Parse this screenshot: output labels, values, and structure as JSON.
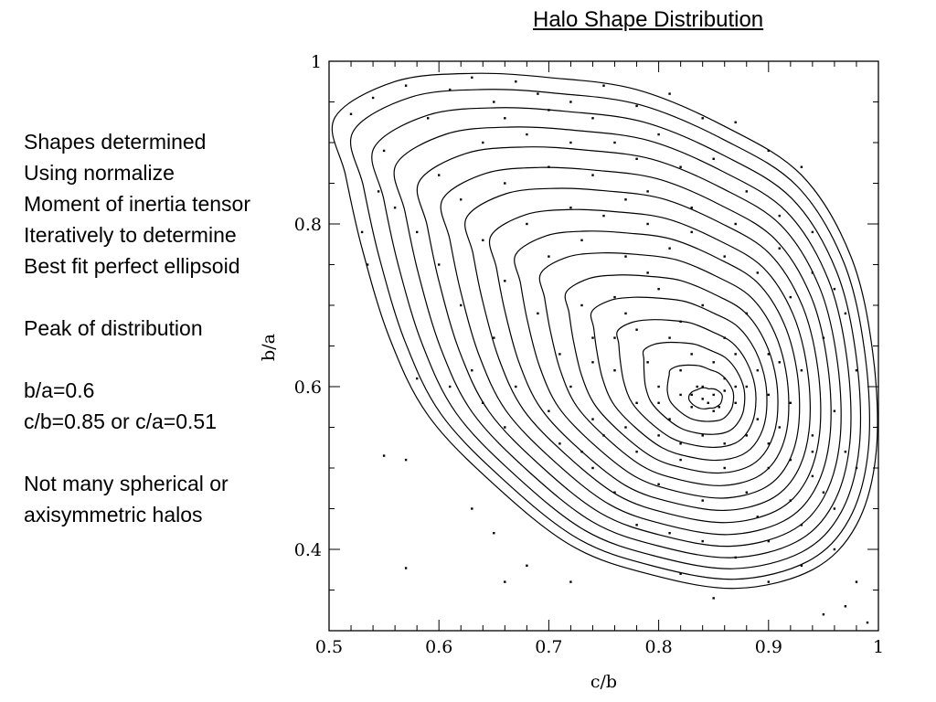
{
  "slide": {
    "title": "Halo Shape Distribution",
    "notes": [
      "Shapes determined",
      "Using normalize",
      "Moment of inertia tensor",
      "Iteratively to determine",
      "Best fit perfect ellipsoid",
      "",
      "Peak of distribution",
      "",
      "b/a=0.6",
      "c/b=0.85 or c/a=0.51",
      "",
      "Not many spherical or",
      "axisymmetric halos"
    ]
  },
  "chart_data": {
    "type": "scatter",
    "xlabel": "c/b",
    "ylabel": "b/a",
    "xlim": [
      0.5,
      1.0
    ],
    "ylim": [
      0.3,
      1.0
    ],
    "xticks": [
      0.5,
      0.6,
      0.7,
      0.8,
      0.9,
      1.0
    ],
    "xtick_labels": [
      "0.5",
      "0.6",
      "0.7",
      "0.8",
      "0.9",
      "1"
    ],
    "yticks": [
      0.4,
      0.6,
      0.8,
      1.0
    ],
    "ytick_labels": [
      "0.4",
      "0.6",
      "0.8",
      "1"
    ],
    "grid": false,
    "overlay": "density contours",
    "density_peak": {
      "x": 0.845,
      "y": 0.585
    },
    "contour_levels": 16,
    "outer_contour": [
      [
        0.505,
        0.93
      ],
      [
        0.56,
        0.975
      ],
      [
        0.63,
        0.985
      ],
      [
        0.7,
        0.98
      ],
      [
        0.78,
        0.965
      ],
      [
        0.86,
        0.92
      ],
      [
        0.93,
        0.86
      ],
      [
        0.975,
        0.76
      ],
      [
        0.995,
        0.64
      ],
      [
        0.998,
        0.52
      ],
      [
        0.98,
        0.43
      ],
      [
        0.94,
        0.375
      ],
      [
        0.87,
        0.352
      ],
      [
        0.79,
        0.37
      ],
      [
        0.72,
        0.405
      ],
      [
        0.65,
        0.48
      ],
      [
        0.59,
        0.565
      ],
      [
        0.555,
        0.66
      ],
      [
        0.53,
        0.77
      ],
      [
        0.515,
        0.86
      ]
    ],
    "inner_contour": [
      [
        0.828,
        0.591
      ],
      [
        0.835,
        0.596
      ],
      [
        0.846,
        0.597
      ],
      [
        0.856,
        0.593
      ],
      [
        0.859,
        0.585
      ],
      [
        0.855,
        0.578
      ],
      [
        0.845,
        0.574
      ],
      [
        0.834,
        0.576
      ],
      [
        0.828,
        0.582
      ]
    ],
    "points": [
      [
        0.52,
        0.935
      ],
      [
        0.54,
        0.955
      ],
      [
        0.55,
        0.89
      ],
      [
        0.57,
        0.97
      ],
      [
        0.59,
        0.93
      ],
      [
        0.61,
        0.965
      ],
      [
        0.63,
        0.98
      ],
      [
        0.65,
        0.95
      ],
      [
        0.67,
        0.975
      ],
      [
        0.69,
        0.96
      ],
      [
        0.72,
        0.95
      ],
      [
        0.75,
        0.97
      ],
      [
        0.78,
        0.945
      ],
      [
        0.81,
        0.96
      ],
      [
        0.84,
        0.93
      ],
      [
        0.87,
        0.925
      ],
      [
        0.9,
        0.89
      ],
      [
        0.93,
        0.87
      ],
      [
        0.56,
        0.82
      ],
      [
        0.58,
        0.79
      ],
      [
        0.6,
        0.86
      ],
      [
        0.62,
        0.83
      ],
      [
        0.64,
        0.9
      ],
      [
        0.66,
        0.85
      ],
      [
        0.68,
        0.91
      ],
      [
        0.7,
        0.87
      ],
      [
        0.72,
        0.9
      ],
      [
        0.74,
        0.86
      ],
      [
        0.76,
        0.9
      ],
      [
        0.78,
        0.88
      ],
      [
        0.8,
        0.91
      ],
      [
        0.82,
        0.87
      ],
      [
        0.85,
        0.88
      ],
      [
        0.88,
        0.84
      ],
      [
        0.91,
        0.81
      ],
      [
        0.94,
        0.79
      ],
      [
        0.96,
        0.72
      ],
      [
        0.6,
        0.75
      ],
      [
        0.62,
        0.7
      ],
      [
        0.64,
        0.78
      ],
      [
        0.66,
        0.73
      ],
      [
        0.68,
        0.8
      ],
      [
        0.7,
        0.76
      ],
      [
        0.72,
        0.82
      ],
      [
        0.73,
        0.78
      ],
      [
        0.75,
        0.81
      ],
      [
        0.77,
        0.76
      ],
      [
        0.79,
        0.8
      ],
      [
        0.81,
        0.77
      ],
      [
        0.83,
        0.79
      ],
      [
        0.86,
        0.76
      ],
      [
        0.89,
        0.74
      ],
      [
        0.92,
        0.71
      ],
      [
        0.95,
        0.66
      ],
      [
        0.63,
        0.62
      ],
      [
        0.65,
        0.66
      ],
      [
        0.67,
        0.6
      ],
      [
        0.69,
        0.69
      ],
      [
        0.71,
        0.64
      ],
      [
        0.73,
        0.7
      ],
      [
        0.74,
        0.66
      ],
      [
        0.76,
        0.71
      ],
      [
        0.78,
        0.67
      ],
      [
        0.8,
        0.72
      ],
      [
        0.82,
        0.68
      ],
      [
        0.84,
        0.7
      ],
      [
        0.86,
        0.66
      ],
      [
        0.88,
        0.69
      ],
      [
        0.9,
        0.64
      ],
      [
        0.93,
        0.62
      ],
      [
        0.96,
        0.57
      ],
      [
        0.98,
        0.5
      ],
      [
        0.7,
        0.57
      ],
      [
        0.72,
        0.6
      ],
      [
        0.74,
        0.56
      ],
      [
        0.76,
        0.62
      ],
      [
        0.78,
        0.58
      ],
      [
        0.79,
        0.63
      ],
      [
        0.8,
        0.6
      ],
      [
        0.81,
        0.56
      ],
      [
        0.82,
        0.62
      ],
      [
        0.83,
        0.59
      ],
      [
        0.84,
        0.6
      ],
      [
        0.85,
        0.57
      ],
      [
        0.86,
        0.61
      ],
      [
        0.87,
        0.58
      ],
      [
        0.88,
        0.6
      ],
      [
        0.89,
        0.56
      ],
      [
        0.9,
        0.59
      ],
      [
        0.91,
        0.55
      ],
      [
        0.92,
        0.58
      ],
      [
        0.94,
        0.54
      ],
      [
        0.83,
        0.575
      ],
      [
        0.84,
        0.585
      ],
      [
        0.845,
        0.58
      ],
      [
        0.85,
        0.59
      ],
      [
        0.835,
        0.6
      ],
      [
        0.855,
        0.575
      ],
      [
        0.82,
        0.59
      ],
      [
        0.86,
        0.595
      ],
      [
        0.8,
        0.58
      ],
      [
        0.87,
        0.6
      ],
      [
        0.74,
        0.5
      ],
      [
        0.76,
        0.47
      ],
      [
        0.78,
        0.52
      ],
      [
        0.8,
        0.48
      ],
      [
        0.82,
        0.51
      ],
      [
        0.84,
        0.46
      ],
      [
        0.86,
        0.5
      ],
      [
        0.88,
        0.47
      ],
      [
        0.9,
        0.5
      ],
      [
        0.92,
        0.46
      ],
      [
        0.94,
        0.49
      ],
      [
        0.96,
        0.45
      ],
      [
        0.78,
        0.43
      ],
      [
        0.81,
        0.42
      ],
      [
        0.84,
        0.41
      ],
      [
        0.87,
        0.39
      ],
      [
        0.9,
        0.41
      ],
      [
        0.93,
        0.38
      ],
      [
        0.96,
        0.4
      ],
      [
        0.98,
        0.36
      ],
      [
        0.75,
        0.54
      ],
      [
        0.77,
        0.55
      ],
      [
        0.73,
        0.52
      ],
      [
        0.71,
        0.53
      ],
      [
        0.66,
        0.55
      ],
      [
        0.64,
        0.58
      ],
      [
        0.61,
        0.6
      ],
      [
        0.58,
        0.61
      ],
      [
        0.55,
        0.515
      ],
      [
        0.57,
        0.51
      ],
      [
        0.63,
        0.45
      ],
      [
        0.65,
        0.42
      ],
      [
        0.66,
        0.36
      ],
      [
        0.68,
        0.38
      ],
      [
        0.72,
        0.36
      ],
      [
        0.57,
        0.377
      ],
      [
        0.82,
        0.37
      ],
      [
        0.85,
        0.34
      ],
      [
        0.9,
        0.36
      ],
      [
        0.95,
        0.32
      ],
      [
        0.97,
        0.33
      ],
      [
        0.99,
        0.31
      ],
      [
        0.53,
        0.79
      ],
      [
        0.535,
        0.75
      ],
      [
        0.545,
        0.84
      ],
      [
        0.66,
        0.93
      ],
      [
        0.7,
        0.94
      ],
      [
        0.74,
        0.93
      ],
      [
        0.77,
        0.83
      ],
      [
        0.79,
        0.84
      ],
      [
        0.83,
        0.82
      ],
      [
        0.87,
        0.8
      ],
      [
        0.91,
        0.77
      ],
      [
        0.94,
        0.74
      ],
      [
        0.97,
        0.69
      ],
      [
        0.98,
        0.62
      ],
      [
        0.97,
        0.52
      ],
      [
        0.95,
        0.47
      ],
      [
        0.93,
        0.43
      ],
      [
        0.89,
        0.44
      ],
      [
        0.76,
        0.66
      ],
      [
        0.74,
        0.63
      ],
      [
        0.77,
        0.69
      ],
      [
        0.79,
        0.74
      ],
      [
        0.81,
        0.66
      ],
      [
        0.83,
        0.64
      ],
      [
        0.85,
        0.63
      ],
      [
        0.87,
        0.64
      ],
      [
        0.89,
        0.62
      ],
      [
        0.91,
        0.63
      ],
      [
        0.88,
        0.54
      ],
      [
        0.86,
        0.53
      ],
      [
        0.84,
        0.54
      ],
      [
        0.82,
        0.53
      ],
      [
        0.8,
        0.54
      ],
      [
        0.9,
        0.53
      ],
      [
        0.92,
        0.51
      ],
      [
        0.94,
        0.52
      ]
    ]
  }
}
